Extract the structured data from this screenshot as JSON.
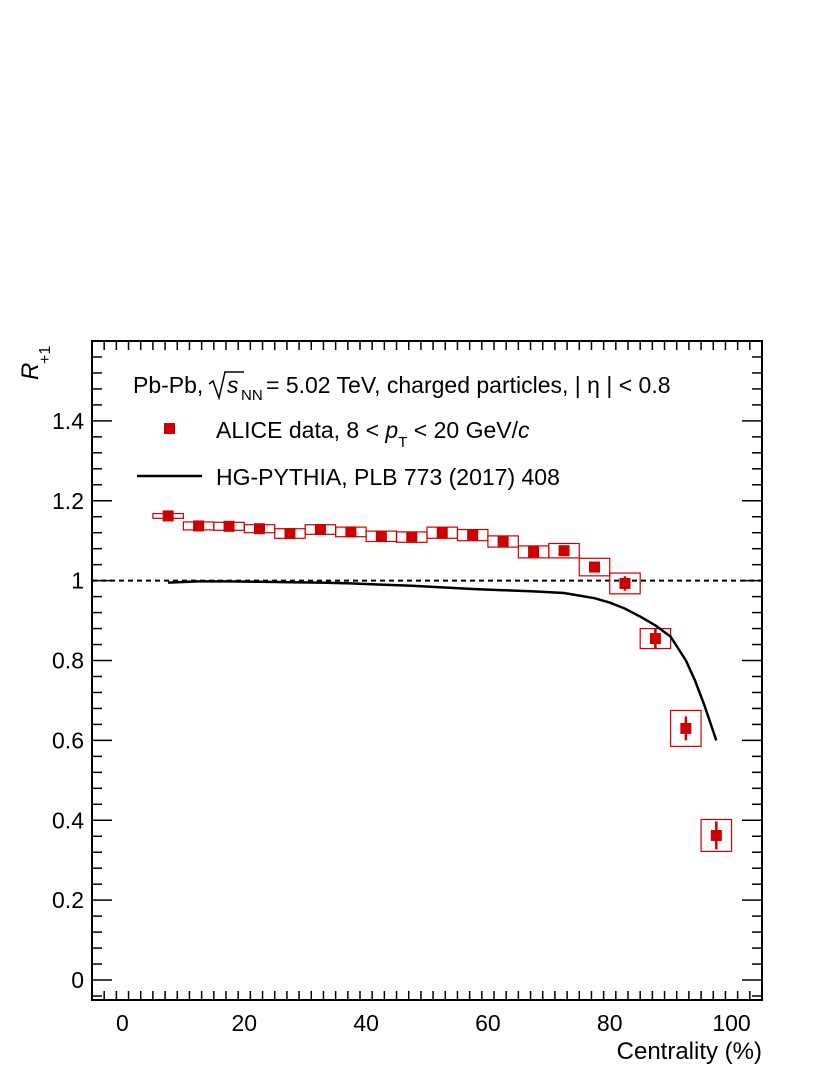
{
  "chart_data": {
    "type": "scatter",
    "xlabel": "Centrality (%)",
    "ylabel_main": "R",
    "ylabel_sub": "+1",
    "xlim": [
      -5,
      105
    ],
    "ylim": [
      -0.05,
      1.6
    ],
    "x_ticks": [
      0,
      20,
      40,
      60,
      80,
      100
    ],
    "x_tick_labels": [
      "0",
      "20",
      "40",
      "60",
      "80",
      "100"
    ],
    "y_ticks": [
      0,
      0.2,
      0.4,
      0.6,
      0.8,
      1,
      1.2,
      1.4
    ],
    "y_tick_labels": [
      "0",
      "0.2",
      "0.4",
      "0.6",
      "0.8",
      "1",
      "1.2",
      "1.4"
    ],
    "reference_line": 1.0,
    "header": {
      "part1": "Pb-Pb, ",
      "sqrt_var": "s",
      "sqrt_sub": "NN",
      "part2": " = 5.02 TeV, charged particles, | η | < 0.8"
    },
    "legend": [
      {
        "marker": "square",
        "pre": "ALICE data, 8 < ",
        "var": "p",
        "sub": "T",
        "post": " < 20 GeV/",
        "unit": "c"
      },
      {
        "marker": "line",
        "label": "HG-PYTHIA, PLB 773 (2017) 408"
      }
    ],
    "series": [
      {
        "name": "ALICE data",
        "color": "#cc0000",
        "x": [
          7.5,
          12.5,
          17.5,
          22.5,
          27.5,
          32.5,
          37.5,
          42.5,
          47.5,
          52.5,
          57.5,
          62.5,
          67.5,
          72.5,
          77.5,
          82.5,
          87.5,
          92.5,
          97.5
        ],
        "y": [
          1.162,
          1.137,
          1.136,
          1.13,
          1.118,
          1.128,
          1.122,
          1.111,
          1.109,
          1.12,
          1.114,
          1.098,
          1.072,
          1.075,
          1.034,
          0.993,
          0.855,
          0.63,
          0.362
        ],
        "stat_err": [
          0.005,
          0.005,
          0.005,
          0.005,
          0.005,
          0.005,
          0.005,
          0.005,
          0.005,
          0.005,
          0.005,
          0.005,
          0.006,
          0.008,
          0.012,
          0.018,
          0.025,
          0.03,
          0.035
        ],
        "sys_err": [
          0.006,
          0.01,
          0.01,
          0.01,
          0.012,
          0.012,
          0.012,
          0.013,
          0.013,
          0.014,
          0.014,
          0.014,
          0.015,
          0.018,
          0.022,
          0.026,
          0.025,
          0.045,
          0.04
        ],
        "sys_halfwidth": [
          2.5,
          2.5,
          2.5,
          2.5,
          2.5,
          2.5,
          2.5,
          2.5,
          2.5,
          2.5,
          2.5,
          2.5,
          2.5,
          2.5,
          2.5,
          2.5,
          2.5,
          2.5,
          2.5
        ]
      },
      {
        "name": "HG-PYTHIA",
        "color": "#000000",
        "x": [
          7.5,
          12.5,
          17.5,
          22.5,
          27.5,
          32.5,
          37.5,
          42.5,
          47.5,
          52.5,
          57.5,
          62.5,
          67.5,
          72.5,
          77.5,
          80,
          82.5,
          85,
          87.5,
          90,
          92.5,
          94,
          95.5,
          97.5
        ],
        "y": [
          0.995,
          0.998,
          0.998,
          0.997,
          0.996,
          0.995,
          0.993,
          0.99,
          0.987,
          0.983,
          0.979,
          0.976,
          0.973,
          0.969,
          0.956,
          0.945,
          0.93,
          0.91,
          0.888,
          0.86,
          0.8,
          0.75,
          0.69,
          0.6
        ]
      }
    ]
  }
}
